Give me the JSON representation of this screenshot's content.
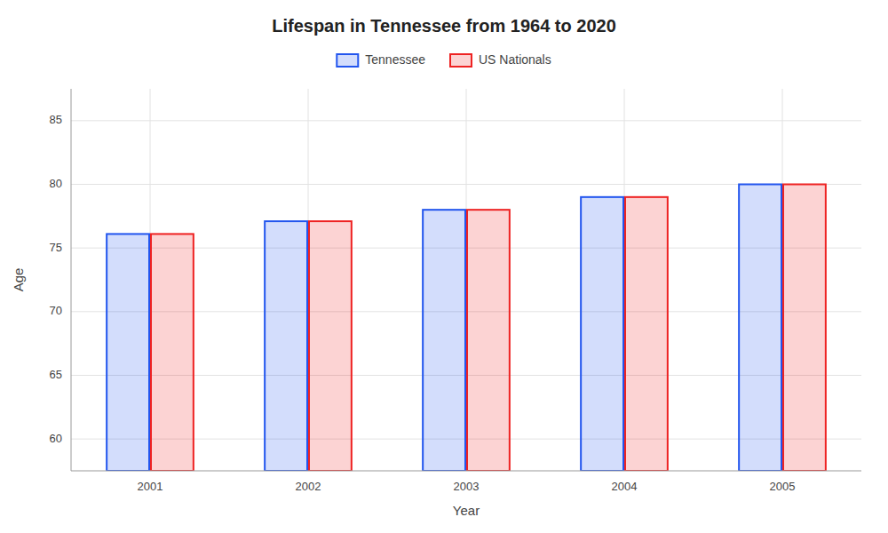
{
  "chart_data": {
    "type": "bar",
    "title": "Lifespan in Tennessee from 1964 to 2020",
    "x_label": "Year",
    "y_label": "Age",
    "categories": [
      "2001",
      "2002",
      "2003",
      "2004",
      "2005"
    ],
    "series": [
      {
        "name": "Tennessee",
        "color": "#2255ee",
        "values": [
          76.1,
          77.1,
          78.0,
          79.0,
          80.0
        ]
      },
      {
        "name": "US Nationals",
        "color": "#ee2222",
        "values": [
          76.1,
          77.1,
          78.0,
          79.0,
          80.0
        ]
      }
    ],
    "ylim": [
      57.5,
      87.5
    ],
    "yticks": [
      60,
      65,
      70,
      75,
      80,
      85
    ],
    "grid": true,
    "legend": "top"
  }
}
